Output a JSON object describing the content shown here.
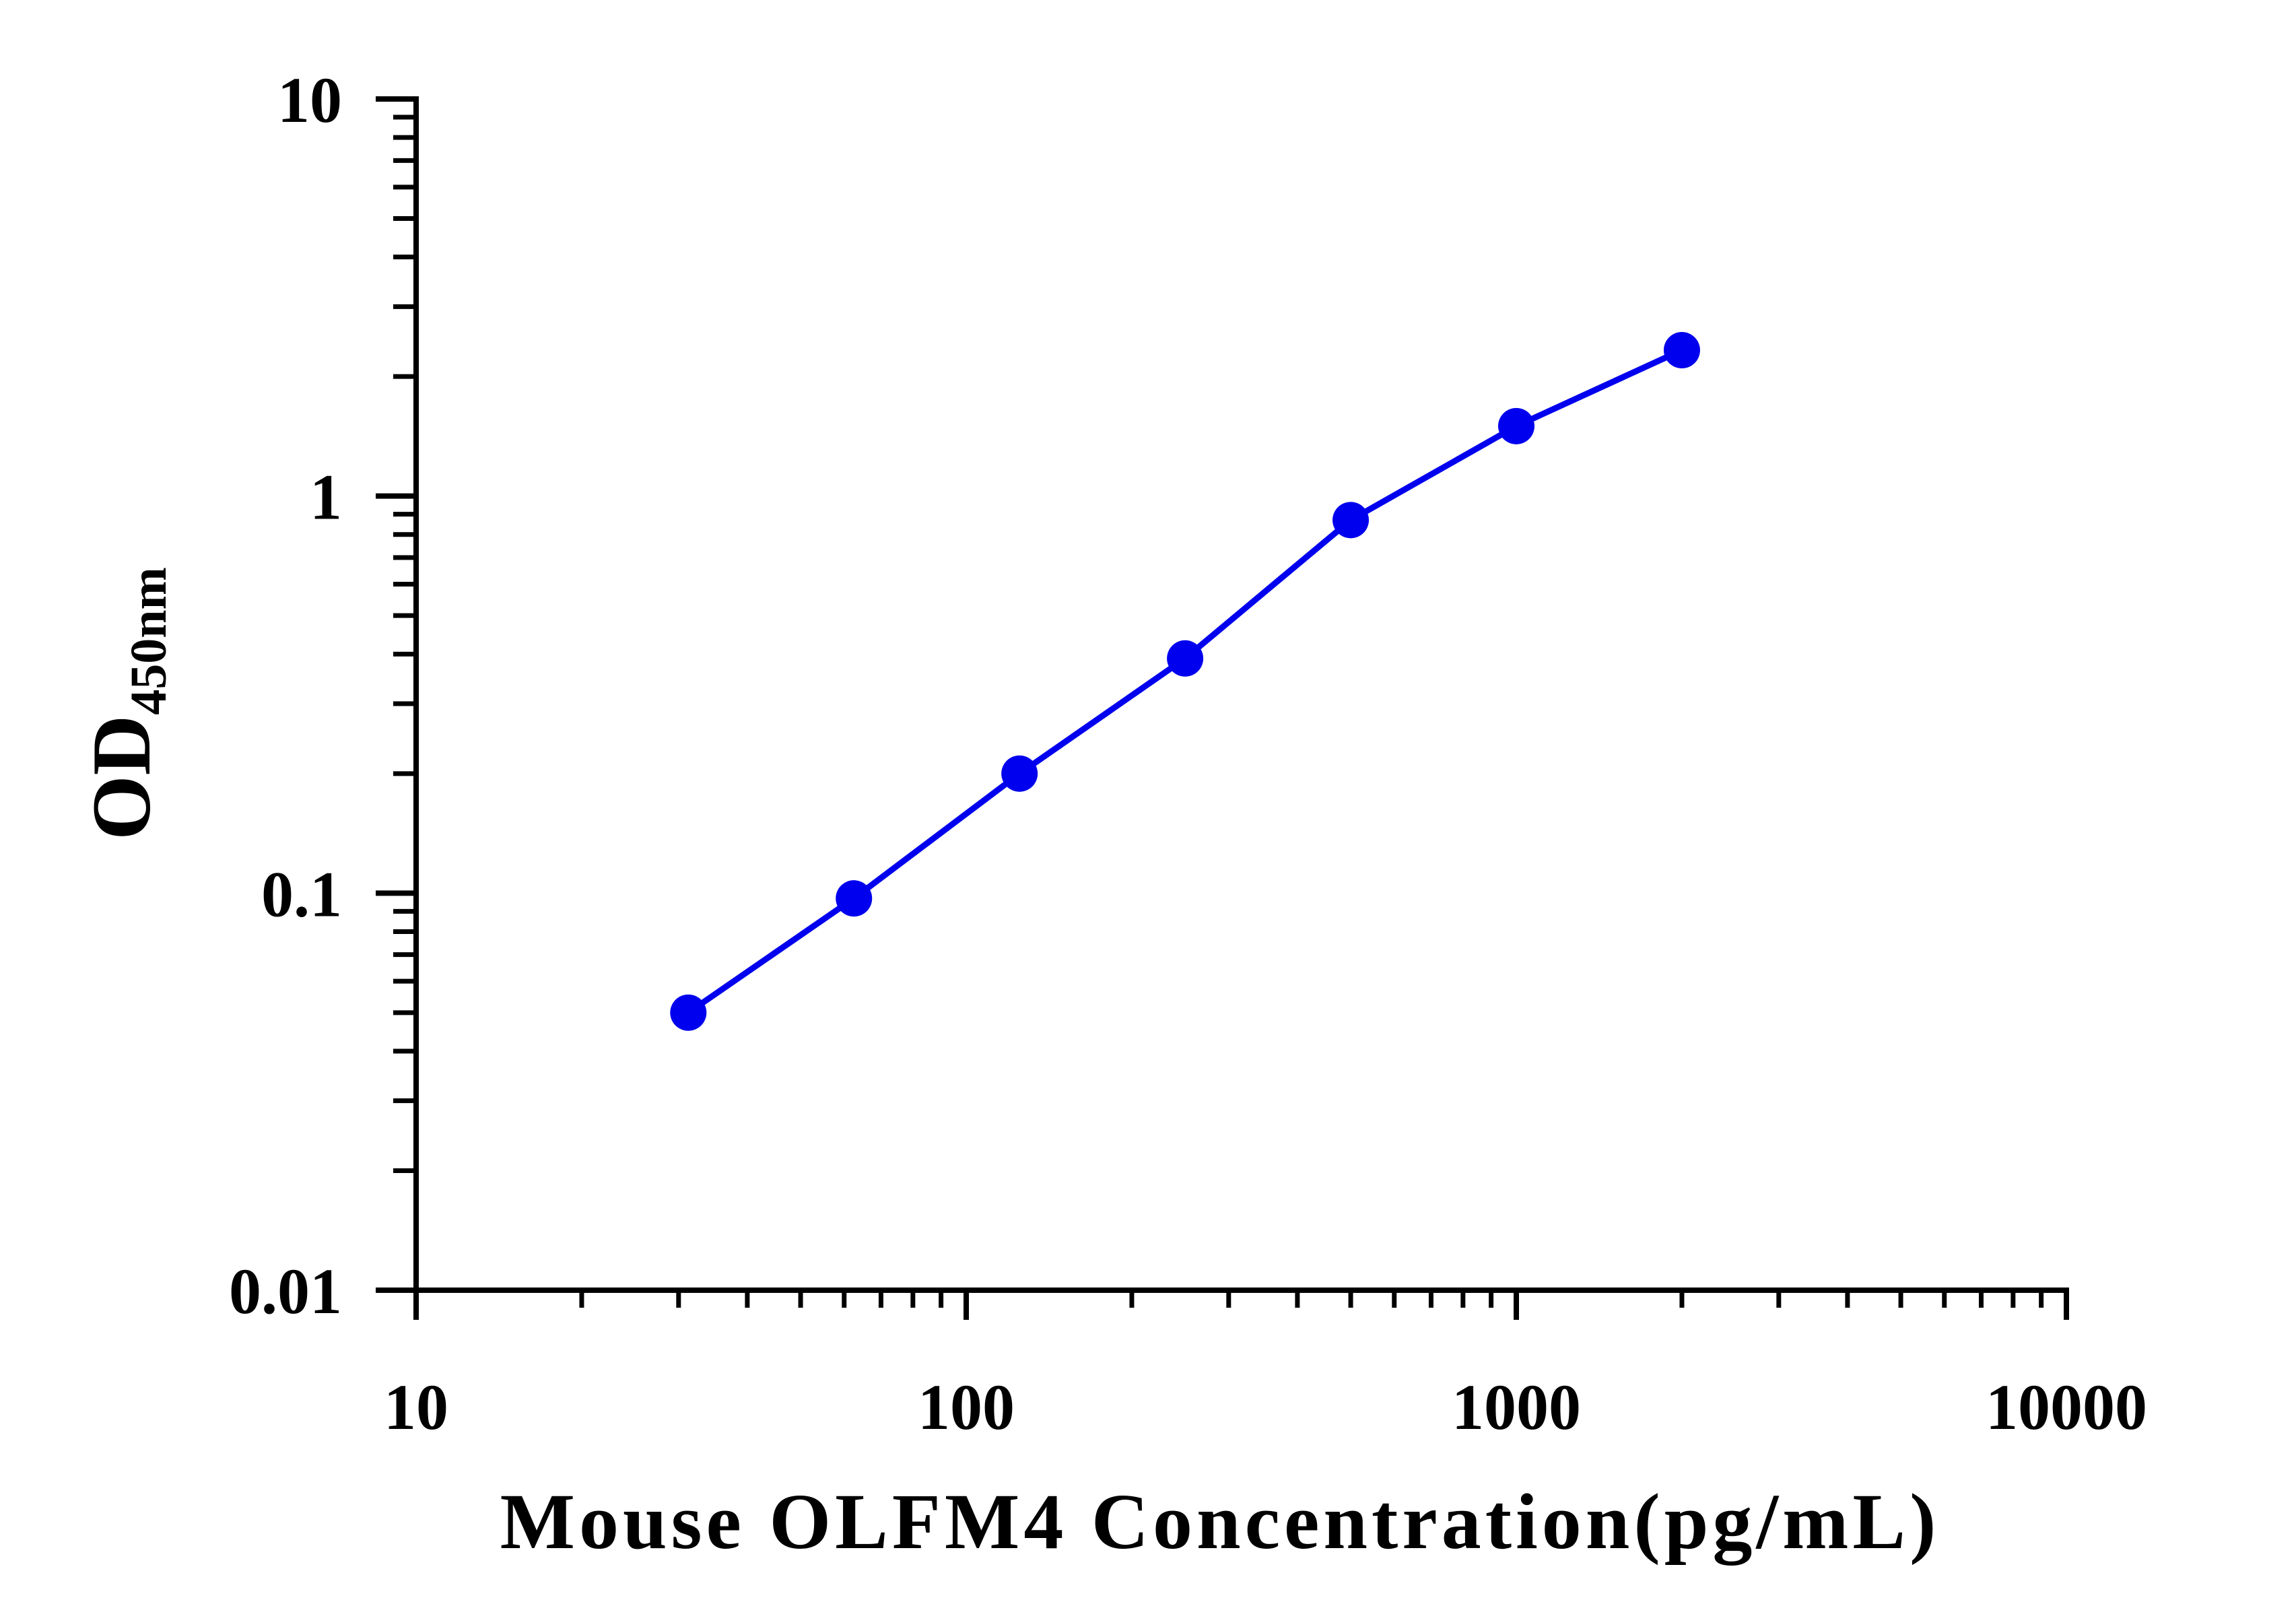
{
  "chart_data": {
    "type": "line",
    "x_scale": "log",
    "y_scale": "log",
    "xlim": [
      10,
      10000
    ],
    "ylim": [
      0.01,
      10
    ],
    "x_ticks": [
      "10",
      "100",
      "1000",
      "10000"
    ],
    "y_ticks": [
      "0.01",
      "0.1",
      "1",
      "10"
    ],
    "xlabel": "Mouse OLFM4 Concentration(pg/mL)",
    "ylabel": "OD",
    "ylabel_subscript": "450nm",
    "grid": false,
    "legend": "none",
    "series": [
      {
        "color": "#0000ee",
        "x": [
          31.25,
          62.5,
          125,
          250,
          500,
          1000,
          2000
        ],
        "y": [
          0.05,
          0.097,
          0.2,
          0.39,
          0.87,
          1.5,
          2.33
        ]
      }
    ]
  }
}
